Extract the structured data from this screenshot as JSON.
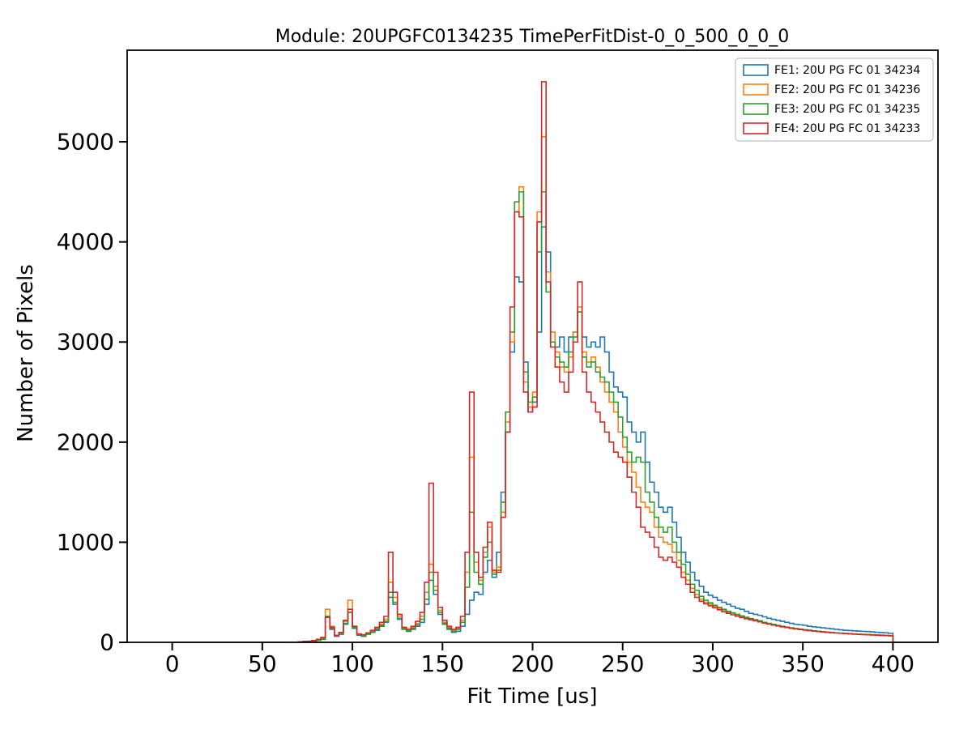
{
  "chart_data": {
    "type": "line",
    "subtype": "step-histogram",
    "title": "Module: 20UPGFC0134235 TimePerFitDist-0_0_500_0_0_0",
    "xlabel": "Fit Time [us]",
    "ylabel": "Number of Pixels",
    "xlim": [
      -25,
      425
    ],
    "ylim": [
      0,
      5915
    ],
    "xticks": [
      0,
      50,
      100,
      150,
      200,
      250,
      300,
      350,
      400
    ],
    "yticks": [
      0,
      1000,
      2000,
      3000,
      4000,
      5000
    ],
    "grid": false,
    "legend_position": "upper right",
    "bins": {
      "start": 70,
      "width": 2.5,
      "count": 132
    },
    "series": [
      {
        "name": "FE1: 20U PG FC 01 34234",
        "color": "#1f77b4",
        "values": [
          5,
          10,
          8,
          12,
          20,
          30,
          250,
          130,
          60,
          80,
          180,
          300,
          140,
          70,
          60,
          80,
          100,
          120,
          160,
          200,
          450,
          380,
          230,
          130,
          110,
          130,
          160,
          200,
          380,
          620,
          480,
          280,
          180,
          130,
          100,
          110,
          160,
          280,
          420,
          500,
          480,
          700,
          820,
          650,
          900,
          1500,
          2100,
          2900,
          3650,
          3600,
          2800,
          2300,
          2400,
          3100,
          4150,
          3900,
          3000,
          2950,
          3050,
          2900,
          3050,
          3100,
          3300,
          3050,
          2950,
          3000,
          2950,
          3050,
          2900,
          2700,
          2550,
          2500,
          2450,
          2200,
          2100,
          2000,
          2100,
          1800,
          1600,
          1500,
          1350,
          1300,
          1350,
          1200,
          1050,
          900,
          800,
          700,
          620,
          560,
          500,
          470,
          450,
          420,
          400,
          380,
          360,
          340,
          330,
          310,
          290,
          280,
          270,
          255,
          240,
          230,
          220,
          210,
          200,
          190,
          180,
          175,
          170,
          160,
          155,
          150,
          145,
          140,
          135,
          130,
          125,
          120,
          118,
          115,
          112,
          110,
          108,
          105,
          100,
          98,
          95,
          90
        ]
      },
      {
        "name": "FE2: 20U PG FC 01 34236",
        "color": "#ff7f0e",
        "values": [
          5,
          8,
          10,
          15,
          25,
          40,
          330,
          160,
          70,
          90,
          210,
          420,
          160,
          80,
          70,
          90,
          110,
          140,
          180,
          230,
          600,
          450,
          260,
          140,
          120,
          150,
          190,
          260,
          500,
          780,
          560,
          320,
          200,
          150,
          120,
          140,
          220,
          700,
          1850,
          800,
          620,
          900,
          1150,
          700,
          750,
          1300,
          2200,
          3000,
          4300,
          4550,
          2600,
          2350,
          2500,
          4300,
          5050,
          3700,
          3100,
          2900,
          2750,
          2700,
          2850,
          3100,
          3350,
          2900,
          2800,
          2850,
          2750,
          2600,
          2500,
          2400,
          2300,
          2100,
          1950,
          1800,
          1700,
          1550,
          1400,
          1350,
          1300,
          1150,
          1050,
          1000,
          980,
          900,
          820,
          700,
          620,
          540,
          480,
          430,
          400,
          380,
          360,
          340,
          320,
          300,
          290,
          270,
          255,
          240,
          230,
          220,
          210,
          195,
          185,
          175,
          165,
          155,
          150,
          140,
          135,
          130,
          125,
          120,
          115,
          110,
          105,
          100,
          98,
          95,
          92,
          90,
          88,
          85,
          82,
          80,
          78,
          76,
          74,
          72,
          70,
          68
        ]
      },
      {
        "name": "FE3: 20U PG FC 01 34235",
        "color": "#2ca02c",
        "values": [
          5,
          8,
          9,
          12,
          22,
          35,
          260,
          140,
          65,
          85,
          190,
          300,
          150,
          75,
          65,
          85,
          105,
          130,
          170,
          210,
          500,
          400,
          240,
          135,
          115,
          140,
          175,
          230,
          430,
          700,
          520,
          300,
          190,
          140,
          110,
          130,
          200,
          550,
          1300,
          700,
          580,
          850,
          1000,
          680,
          720,
          1400,
          2300,
          3100,
          4400,
          4500,
          2700,
          2400,
          2450,
          3900,
          4500,
          3500,
          3000,
          2850,
          2800,
          2750,
          2900,
          3050,
          3300,
          2850,
          2750,
          2800,
          2700,
          2650,
          2600,
          2500,
          2400,
          2250,
          2050,
          1900,
          1800,
          1850,
          1800,
          1500,
          1400,
          1250,
          1150,
          1100,
          1150,
          1000,
          900,
          780,
          680,
          580,
          520,
          460,
          420,
          395,
          370,
          350,
          330,
          310,
          295,
          280,
          265,
          250,
          238,
          226,
          215,
          200,
          190,
          180,
          170,
          160,
          152,
          145,
          138,
          132,
          126,
          121,
          116,
          111,
          106,
          102,
          98,
          95,
          92,
          89,
          86,
          83,
          80,
          78,
          76,
          74,
          72,
          70,
          68,
          66
        ]
      },
      {
        "name": "FE4: 20U PG FC 01 34233",
        "color": "#d62728",
        "values": [
          5,
          10,
          12,
          18,
          30,
          50,
          250,
          150,
          70,
          100,
          220,
          330,
          160,
          85,
          75,
          95,
          120,
          150,
          200,
          260,
          900,
          500,
          280,
          150,
          130,
          160,
          210,
          300,
          600,
          1590,
          700,
          350,
          220,
          160,
          130,
          150,
          260,
          900,
          2500,
          900,
          650,
          950,
          1200,
          720,
          700,
          1250,
          2100,
          3350,
          4300,
          4250,
          2500,
          2300,
          2350,
          4200,
          5600,
          3600,
          2950,
          2750,
          2600,
          2500,
          2700,
          3000,
          3600,
          2700,
          2500,
          2400,
          2300,
          2200,
          2100,
          2000,
          1900,
          1850,
          1800,
          1650,
          1500,
          1350,
          1150,
          1100,
          1050,
          950,
          850,
          820,
          850,
          800,
          750,
          650,
          580,
          500,
          450,
          410,
          385,
          365,
          345,
          325,
          305,
          290,
          275,
          260,
          248,
          236,
          225,
          215,
          205,
          192,
          182,
          172,
          163,
          155,
          148,
          140,
          134,
          128,
          122,
          117,
          112,
          108,
          104,
          100,
          96,
          93,
          90,
          87,
          84,
          81,
          79,
          77,
          75,
          73,
          71,
          69,
          67,
          65
        ]
      }
    ]
  }
}
